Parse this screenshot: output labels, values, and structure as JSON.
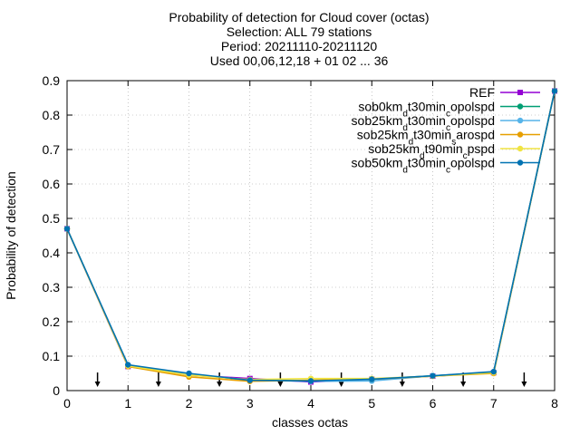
{
  "chart_data": {
    "type": "line",
    "title_lines": [
      "Probability of detection  for Cloud cover (octas)",
      "Selection: ALL     79 stations",
      "Period: 20211110-20211120",
      "Used 00,06,12,18 + 01 02 ... 36"
    ],
    "xlabel": "classes octas",
    "ylabel": "Probability of detection",
    "xlim": [
      0,
      8
    ],
    "ylim": [
      0,
      0.9
    ],
    "x_ticks": [
      "0",
      "1",
      "2",
      "3",
      "4",
      "5",
      "6",
      "7",
      "8"
    ],
    "y_ticks": [
      "0",
      "0.1",
      "0.2",
      "0.3",
      "0.4",
      "0.5",
      "0.6",
      "0.7",
      "0.8",
      "0.9"
    ],
    "grid": true,
    "legend_position": "top-right",
    "x": [
      0,
      1,
      2,
      3,
      4,
      5,
      6,
      7,
      8
    ],
    "series": [
      {
        "name": "REF",
        "name_parts": [
          [
            "REF",
            ""
          ]
        ],
        "color": "#9400d3",
        "marker": "square",
        "values": [
          0.47,
          0.07,
          0.045,
          0.035,
          0.025,
          0.033,
          0.042,
          0.052,
          0.87
        ]
      },
      {
        "name": "sob0km_d t30min_c opolspd",
        "name_parts": [
          [
            "sob0km",
            ""
          ],
          [
            "d",
            "sub"
          ],
          [
            "t30min",
            ""
          ],
          [
            "c",
            "sub"
          ],
          [
            "opolspd",
            ""
          ]
        ],
        "color": "#009e73",
        "marker": "circle",
        "values": [
          0.47,
          0.073,
          0.048,
          0.03,
          0.028,
          0.033,
          0.043,
          0.053,
          0.87
        ]
      },
      {
        "name": "sob25km_d t30min_c opolspd",
        "name_parts": [
          [
            "sob25km",
            ""
          ],
          [
            "d",
            "sub"
          ],
          [
            "t30min",
            ""
          ],
          [
            "c",
            "sub"
          ],
          [
            "opolspd",
            ""
          ]
        ],
        "color": "#56b4e9",
        "marker": "circle",
        "values": [
          0.47,
          0.073,
          0.048,
          0.03,
          0.027,
          0.028,
          0.043,
          0.053,
          0.87
        ]
      },
      {
        "name": "sob25km_d t30min_s arospd",
        "name_parts": [
          [
            "sob25km",
            ""
          ],
          [
            "d",
            "sub"
          ],
          [
            "t30min",
            ""
          ],
          [
            "s",
            "sub"
          ],
          [
            "arospd",
            ""
          ]
        ],
        "color": "#e69f00",
        "marker": "circle",
        "values": [
          0.47,
          0.07,
          0.04,
          0.027,
          0.03,
          0.033,
          0.042,
          0.05,
          0.87
        ]
      },
      {
        "name": "sob25km_d t90min_c pspd",
        "name_parts": [
          [
            "sob25km",
            ""
          ],
          [
            "d",
            "sub"
          ],
          [
            "t90min",
            ""
          ],
          [
            "c",
            "sub"
          ],
          [
            "pspd",
            ""
          ]
        ],
        "color": "#f0e442",
        "marker": "circle",
        "values": [
          0.47,
          0.072,
          0.045,
          0.032,
          0.035,
          0.035,
          0.042,
          0.052,
          0.87
        ]
      },
      {
        "name": "sob50km_d t30min_c opolspd",
        "name_parts": [
          [
            "sob50km",
            ""
          ],
          [
            "d",
            "sub"
          ],
          [
            "t30min",
            ""
          ],
          [
            "c",
            "sub"
          ],
          [
            "opolspd",
            ""
          ]
        ],
        "color": "#0072b2",
        "marker": "circle",
        "values": [
          0.47,
          0.075,
          0.05,
          0.03,
          0.028,
          0.033,
          0.043,
          0.055,
          0.87
        ]
      }
    ],
    "markers_x": [
      0.5,
      1.5,
      2.5,
      3.5,
      4.5,
      5.5,
      6.5,
      7.5
    ],
    "marker_color": "#000000"
  }
}
